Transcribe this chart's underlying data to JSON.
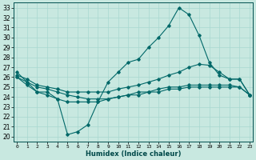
{
  "bg_color": "#c8e8e0",
  "grid_color": "#a8d8d0",
  "line_color": "#006868",
  "x_label": "Humidex (Indice chaleur)",
  "x_ticks": [
    0,
    1,
    2,
    3,
    4,
    5,
    6,
    7,
    8,
    9,
    10,
    11,
    12,
    13,
    14,
    15,
    16,
    17,
    18,
    19,
    20,
    21,
    22,
    23
  ],
  "x_tick_labels": [
    "0",
    "1",
    "2",
    "3",
    "4",
    "5",
    "6",
    "7",
    "8",
    "9",
    "10",
    "11",
    "12",
    "13",
    "14",
    "15",
    "16",
    "17",
    "18",
    "19",
    "20",
    "21",
    "22",
    "23"
  ],
  "ylim": [
    19.5,
    33.5
  ],
  "xlim": [
    -0.3,
    23.3
  ],
  "yticks": [
    20,
    21,
    22,
    23,
    24,
    25,
    26,
    27,
    28,
    29,
    30,
    31,
    32,
    33
  ],
  "ytick_labels": [
    "20",
    "21",
    "22",
    "23",
    "24",
    "25",
    "26",
    "27",
    "28",
    "29",
    "30",
    "31",
    "32",
    "33"
  ],
  "line1_y": [
    26.5,
    25.5,
    24.5,
    24.5,
    23.8,
    20.2,
    20.5,
    21.2,
    23.5,
    25.5,
    26.5,
    27.5,
    27.8,
    29.0,
    30.0,
    31.2,
    33.0,
    32.3,
    30.2,
    27.5,
    26.2,
    25.8,
    25.8,
    24.2
  ],
  "line2_y": [
    26.2,
    25.8,
    25.2,
    25.0,
    24.8,
    24.5,
    24.5,
    24.5,
    24.5,
    24.5,
    24.8,
    25.0,
    25.2,
    25.5,
    25.8,
    26.2,
    26.5,
    27.0,
    27.3,
    27.2,
    26.5,
    25.8,
    25.8,
    24.2
  ],
  "line3_y": [
    26.0,
    25.5,
    25.0,
    24.8,
    24.5,
    24.2,
    24.0,
    23.8,
    23.8,
    23.8,
    24.0,
    24.2,
    24.2,
    24.5,
    24.5,
    24.8,
    24.8,
    25.0,
    25.0,
    25.0,
    25.0,
    25.0,
    25.0,
    24.2
  ],
  "line4_y": [
    26.0,
    25.2,
    24.5,
    24.2,
    23.8,
    23.5,
    23.5,
    23.5,
    23.5,
    23.8,
    24.0,
    24.2,
    24.5,
    24.5,
    24.8,
    25.0,
    25.0,
    25.2,
    25.2,
    25.2,
    25.2,
    25.2,
    25.0,
    24.2
  ]
}
